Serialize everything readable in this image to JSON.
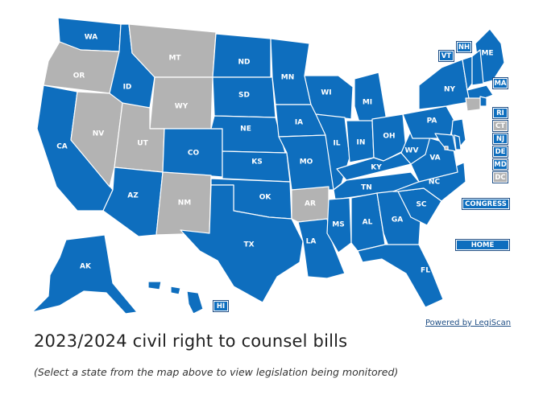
{
  "colors": {
    "active": "#0e6ebe",
    "inactive": "#b3b3b3",
    "border": "#ffffff"
  },
  "states": [
    {
      "abbr": "WA",
      "status": "active"
    },
    {
      "abbr": "OR",
      "status": "inactive"
    },
    {
      "abbr": "CA",
      "status": "active"
    },
    {
      "abbr": "ID",
      "status": "active"
    },
    {
      "abbr": "NV",
      "status": "inactive"
    },
    {
      "abbr": "MT",
      "status": "inactive"
    },
    {
      "abbr": "WY",
      "status": "inactive"
    },
    {
      "abbr": "UT",
      "status": "inactive"
    },
    {
      "abbr": "AZ",
      "status": "active"
    },
    {
      "abbr": "CO",
      "status": "active"
    },
    {
      "abbr": "NM",
      "status": "inactive"
    },
    {
      "abbr": "ND",
      "status": "active"
    },
    {
      "abbr": "SD",
      "status": "active"
    },
    {
      "abbr": "NE",
      "status": "active"
    },
    {
      "abbr": "KS",
      "status": "active"
    },
    {
      "abbr": "OK",
      "status": "active"
    },
    {
      "abbr": "TX",
      "status": "active"
    },
    {
      "abbr": "MN",
      "status": "active"
    },
    {
      "abbr": "IA",
      "status": "active"
    },
    {
      "abbr": "MO",
      "status": "active"
    },
    {
      "abbr": "AR",
      "status": "inactive"
    },
    {
      "abbr": "LA",
      "status": "active"
    },
    {
      "abbr": "WI",
      "status": "active"
    },
    {
      "abbr": "IL",
      "status": "active"
    },
    {
      "abbr": "MI",
      "status": "active"
    },
    {
      "abbr": "IN",
      "status": "active"
    },
    {
      "abbr": "OH",
      "status": "active"
    },
    {
      "abbr": "KY",
      "status": "active"
    },
    {
      "abbr": "TN",
      "status": "active"
    },
    {
      "abbr": "MS",
      "status": "active"
    },
    {
      "abbr": "AL",
      "status": "active"
    },
    {
      "abbr": "GA",
      "status": "active"
    },
    {
      "abbr": "FL",
      "status": "active"
    },
    {
      "abbr": "SC",
      "status": "active"
    },
    {
      "abbr": "NC",
      "status": "active"
    },
    {
      "abbr": "VA",
      "status": "active"
    },
    {
      "abbr": "WV",
      "status": "active"
    },
    {
      "abbr": "PA",
      "status": "active"
    },
    {
      "abbr": "NY",
      "status": "active"
    },
    {
      "abbr": "ME",
      "status": "active"
    },
    {
      "abbr": "AK",
      "status": "active"
    },
    {
      "abbr": "HI",
      "status": "active"
    },
    {
      "abbr": "VT",
      "status": "active"
    },
    {
      "abbr": "NH",
      "status": "active"
    },
    {
      "abbr": "MA",
      "status": "active"
    },
    {
      "abbr": "RI",
      "status": "active"
    },
    {
      "abbr": "CT",
      "status": "inactive"
    },
    {
      "abbr": "NJ",
      "status": "active"
    },
    {
      "abbr": "DE",
      "status": "active"
    },
    {
      "abbr": "MD",
      "status": "active"
    },
    {
      "abbr": "DC",
      "status": "inactive"
    }
  ],
  "buttons": {
    "congress": "CONGRESS",
    "home": "HOME"
  },
  "powered_by": "Powered by LegiScan",
  "title": "2023/2024 civil right to counsel bills",
  "subtitle": "(Select a state from the map above to view legislation being monitored)"
}
